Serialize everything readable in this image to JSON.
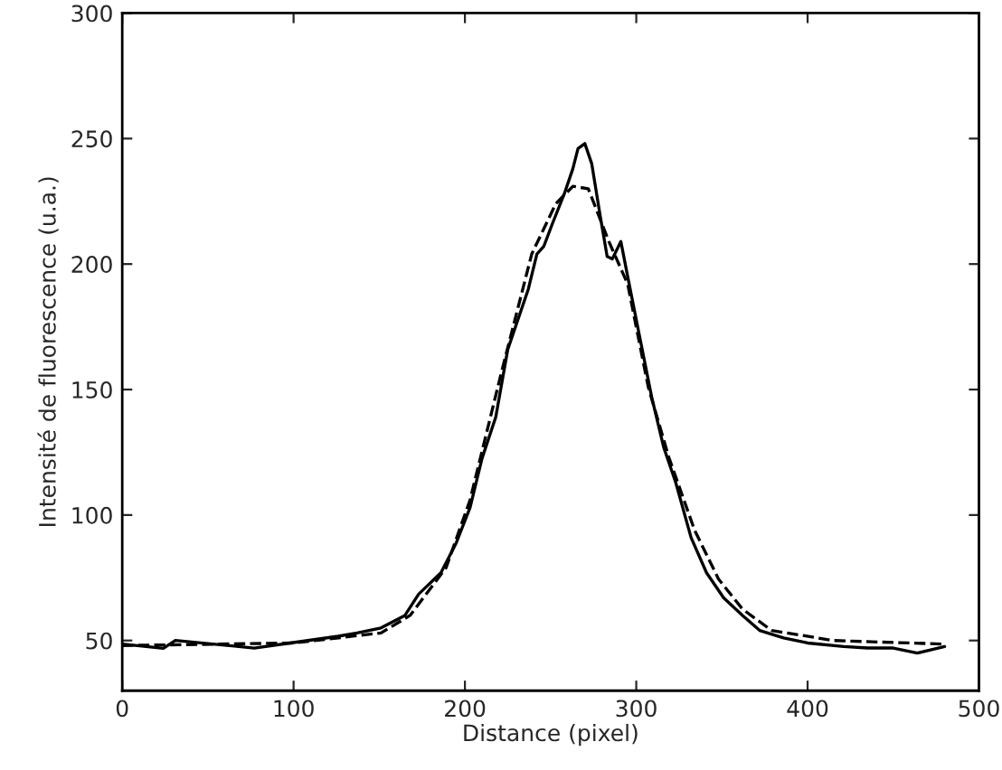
{
  "chart_data": {
    "type": "line",
    "xlabel": "Distance (pixel)",
    "ylabel": "Intensité de fluorescence (u.a.)",
    "xlim": [
      0,
      500
    ],
    "xticks": [
      0,
      100,
      200,
      300,
      400,
      500
    ],
    "ylim": [
      30,
      300
    ],
    "yticks": [
      50,
      100,
      150,
      200,
      250,
      300
    ],
    "grid": false,
    "series": [
      {
        "color": "#000000",
        "line_style": "solid",
        "x": [
          0,
          24,
          31,
          77,
          98,
          126,
          137,
          151,
          165,
          173,
          186,
          195,
          203,
          210,
          218,
          225,
          232,
          237,
          242,
          246,
          251,
          258,
          263,
          266,
          270,
          274,
          279,
          283,
          286,
          291,
          295,
          302,
          309,
          316,
          323,
          332,
          341,
          351,
          362,
          372,
          386,
          400,
          421,
          435,
          450,
          464,
          480
        ],
        "values": [
          48.6,
          46.9,
          50,
          47,
          49,
          51.7,
          53,
          55,
          60,
          68.5,
          77,
          89,
          103,
          122.6,
          139,
          166,
          180,
          190,
          204,
          207,
          216,
          228,
          238,
          246,
          248,
          240,
          219,
          203,
          202,
          209,
          195,
          171,
          147,
          127,
          113,
          91,
          77,
          67,
          60,
          54,
          51,
          49,
          47.6,
          47,
          47,
          45,
          47.6
        ]
      },
      {
        "color": "#000000",
        "line_style": "dashed",
        "x": [
          0,
          100,
          151,
          168,
          189,
          203,
          221,
          239,
          253,
          263,
          272,
          284,
          295,
          307,
          319,
          334,
          348,
          362,
          379,
          415,
          478
        ],
        "values": [
          48,
          49,
          53,
          60,
          79,
          106,
          156,
          204,
          224,
          231,
          230,
          209,
          192,
          151,
          123,
          94,
          74.5,
          62.5,
          54,
          50,
          48.6
        ]
      }
    ]
  }
}
